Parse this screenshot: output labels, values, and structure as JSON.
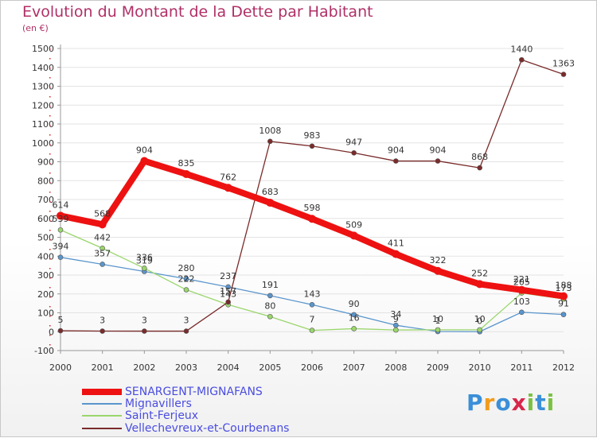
{
  "header": {
    "title": "Evolution du Montant de la Dette par Habitant",
    "subtitle": "(en €)"
  },
  "logo": {
    "letters": [
      "P",
      "r",
      "o",
      "x",
      "i",
      "t",
      "i"
    ],
    "colors": [
      "#3a8fd8",
      "#f29b1d",
      "#3a8fd8",
      "#d8264b",
      "#7ac143",
      "#3a8fd8",
      "#7ac143"
    ]
  },
  "chart_data": {
    "type": "line",
    "title": "Evolution du Montant de la Dette par Habitant",
    "ylabel": "(en €)",
    "xlabel": "",
    "x": [
      2000,
      2001,
      2002,
      2003,
      2004,
      2005,
      2006,
      2007,
      2008,
      2009,
      2010,
      2011,
      2012
    ],
    "y_ticks": [
      -100,
      0,
      100,
      200,
      300,
      400,
      500,
      600,
      700,
      800,
      900,
      1000,
      1100,
      1200,
      1300,
      1400,
      1500
    ],
    "ylim": [
      -100,
      1500
    ],
    "grid": "horizontal",
    "legend_position": "bottom-left",
    "series": [
      {
        "name": "SENARGENT-MIGNAFANS",
        "color": "#ee1111",
        "thick": true,
        "values": [
          614,
          568,
          904,
          835,
          762,
          683,
          598,
          509,
          411,
          322,
          252,
          221,
          188
        ]
      },
      {
        "name": "Mignavillers",
        "color": "#5a95cc",
        "thick": false,
        "values": [
          394,
          357,
          319,
          280,
          237,
          191,
          143,
          90,
          34,
          1,
          0,
          103,
          91
        ]
      },
      {
        "name": "Saint-Ferjeux",
        "color": "#9ad66c",
        "thick": false,
        "values": [
          539,
          442,
          336,
          222,
          143,
          80,
          7,
          16,
          9,
          10,
          10,
          205,
          173
        ]
      },
      {
        "name": "Vellechevreux-et-Courbenans",
        "color": "#7a2b2b",
        "thick": false,
        "values": [
          5,
          3,
          3,
          3,
          157,
          1008,
          983,
          947,
          904,
          904,
          868,
          1440,
          1363
        ]
      }
    ]
  }
}
